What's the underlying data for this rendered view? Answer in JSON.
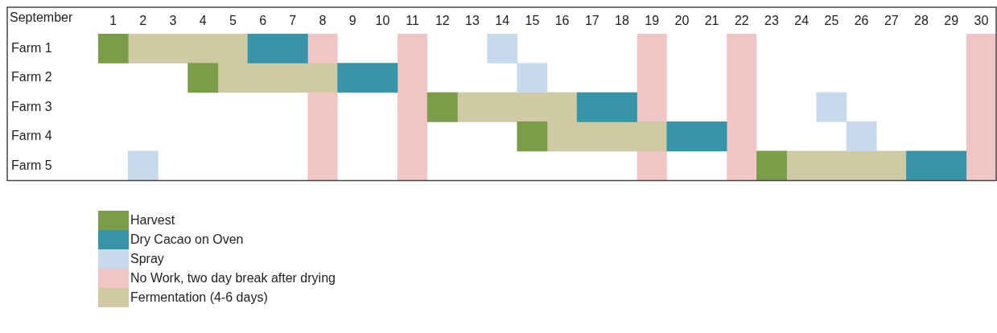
{
  "chart_data": {
    "type": "bar",
    "orientation": "horizontal",
    "xlabel": "September",
    "categories": [
      "Farm 1",
      "Farm 2",
      "Farm 3",
      "Farm 4",
      "Farm 5"
    ],
    "xlim": [
      0.5,
      30.5
    ],
    "xticks": [
      1,
      2,
      3,
      4,
      5,
      6,
      7,
      8,
      9,
      10,
      11,
      12,
      13,
      14,
      15,
      16,
      17,
      18,
      19,
      20,
      21,
      22,
      23,
      24,
      25,
      26,
      27,
      28,
      29,
      30
    ],
    "series": [
      {
        "name": "Harvest",
        "color": "#7b9c48",
        "base": [
          0.5,
          3.5,
          11.5,
          14.5,
          22.5
        ],
        "values": [
          1,
          1,
          1,
          1,
          1
        ]
      },
      {
        "name": "Dry Cacao on Oven",
        "color": "#3895a8",
        "base": [
          5.5,
          8.5,
          16.5,
          19.5,
          27.5
        ],
        "values": [
          2,
          2,
          2,
          2,
          2
        ]
      },
      {
        "name": "Spray",
        "color": "#c6daec",
        "base": [
          13.5,
          14.5,
          24.5,
          25.5,
          1.5
        ],
        "values": [
          1,
          1,
          1,
          1,
          1
        ]
      },
      {
        "name": "Fermentation (4-6 days)",
        "color": "#cfcaa4",
        "base": [
          1.5,
          4.5,
          12.5,
          15.5,
          23.5
        ],
        "values": [
          4,
          4,
          4,
          4,
          4
        ]
      }
    ],
    "bands": [
      {
        "axis": "x",
        "from": 7.5,
        "to": 8.5,
        "color": "#efc5c5",
        "label": "No Work, two day break after drying"
      },
      {
        "axis": "x",
        "from": 10.5,
        "to": 11.5,
        "color": "#efc5c5"
      },
      {
        "axis": "x",
        "from": 18.5,
        "to": 19.5,
        "color": "#efc5c5"
      },
      {
        "axis": "x",
        "from": 21.5,
        "to": 22.5,
        "color": "#efc5c5"
      },
      {
        "axis": "x",
        "from": 29.5,
        "to": 30.5,
        "color": "#efc5c5"
      }
    ],
    "grid": false,
    "legend": "bottom"
  }
}
